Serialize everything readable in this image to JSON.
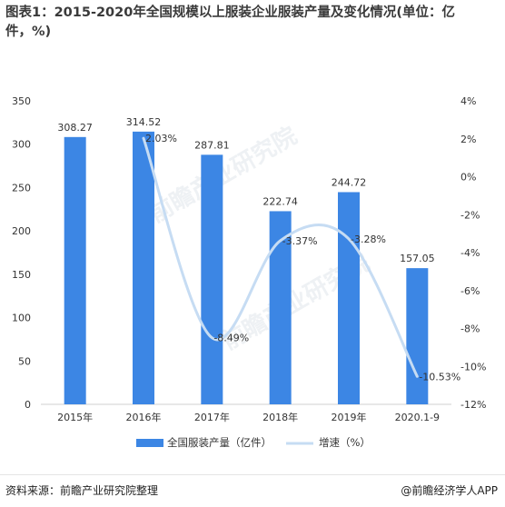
{
  "title": "图表1：2015-2020年全国规模以上服装企业服装产量及变化情况(单位：亿件，%)",
  "source": "资料来源：前瞻产业研究院整理",
  "brand": "@前瞻经济学人APP",
  "watermark": "前瞻产业研究院",
  "chart_data": {
    "type": "bar+line",
    "categories": [
      "2015年",
      "2016年",
      "2017年",
      "2018年",
      "2019年",
      "2020.1-9"
    ],
    "series": [
      {
        "name": "全国服装产量（亿件）",
        "type": "bar",
        "axis": "left",
        "color": "#3c86e4",
        "values": [
          308.27,
          314.52,
          287.81,
          222.74,
          244.72,
          157.05
        ],
        "labels": [
          "308.27",
          "314.52",
          "287.81",
          "222.74",
          "244.72",
          "157.05"
        ]
      },
      {
        "name": "增速（%）",
        "type": "line",
        "axis": "right",
        "color": "#c6dcf3",
        "values": [
          null,
          2.03,
          -8.49,
          -3.37,
          -3.28,
          -10.53
        ],
        "labels": [
          "",
          "2.03%",
          "-8.49%",
          "-3.37%",
          "-3.28%",
          "-10.53%"
        ]
      }
    ],
    "y_left": {
      "min": 0,
      "max": 350,
      "ticks": [
        0,
        50,
        100,
        150,
        200,
        250,
        300,
        350
      ]
    },
    "y_right": {
      "min": -12,
      "max": 4,
      "ticks": [
        -12,
        -10,
        -8,
        -6,
        -4,
        -2,
        0,
        2,
        4
      ],
      "tick_labels": [
        "-12%",
        "-10%",
        "-8%",
        "-6%",
        "-4%",
        "-2%",
        "0%",
        "2%",
        "4%"
      ]
    },
    "grid": false,
    "legend_position": "bottom"
  }
}
